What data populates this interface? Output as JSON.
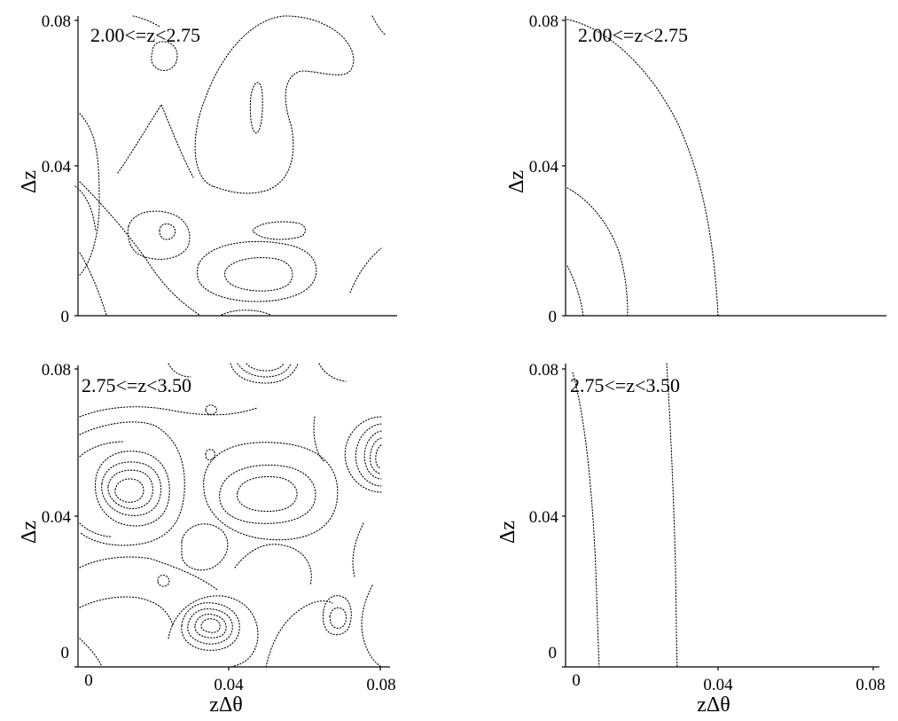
{
  "chart_data": [
    {
      "type": "contour",
      "panel": "top-left",
      "annotation": "2.00<=z<2.75",
      "xlim": [
        0,
        0.08
      ],
      "ylim": [
        0,
        0.08
      ],
      "xticks": [
        "0",
        "0.04",
        "0.08"
      ],
      "yticks": [
        "0",
        "0.04",
        "0.08"
      ],
      "ylabel": "Δz",
      "xlabel": ""
    },
    {
      "type": "contour",
      "panel": "top-right",
      "annotation": "2.00<=z<2.75",
      "xlim": [
        0,
        0.08
      ],
      "ylim": [
        0,
        0.08
      ],
      "xticks": [
        "0",
        "0.04",
        "0.08"
      ],
      "yticks": [
        "0",
        "0.04",
        "0.08"
      ],
      "ylabel": "Δz",
      "xlabel": ""
    },
    {
      "type": "contour",
      "panel": "bottom-left",
      "annotation": "2.75<=z<3.50",
      "xlim": [
        0,
        0.08
      ],
      "ylim": [
        0,
        0.08
      ],
      "xticks": [
        "0",
        "0.04",
        "0.08"
      ],
      "yticks": [
        "0",
        "0.04",
        "0.08"
      ],
      "ylabel": "Δz",
      "xlabel": "zΔθ"
    },
    {
      "type": "contour",
      "panel": "bottom-right",
      "annotation": "2.75<=z<3.50",
      "xlim": [
        0,
        0.08
      ],
      "ylim": [
        0,
        0.08
      ],
      "xticks": [
        "0",
        "0.04",
        "0.08"
      ],
      "yticks": [
        "0",
        "0.04",
        "0.08"
      ],
      "ylabel": "Δz",
      "xlabel": "zΔθ"
    }
  ]
}
